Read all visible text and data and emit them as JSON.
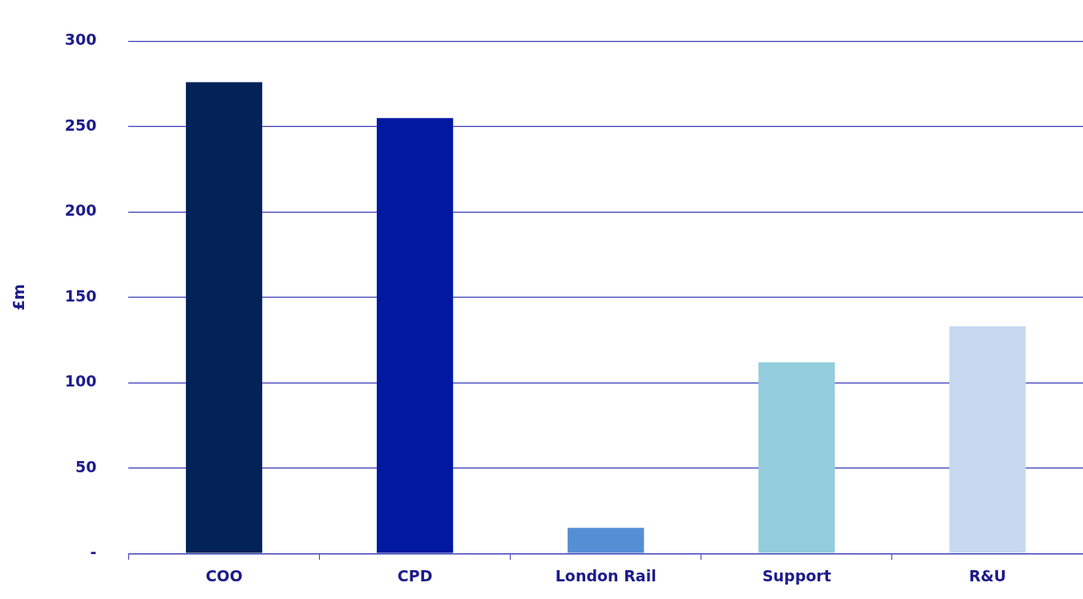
{
  "chart_data": {
    "type": "bar",
    "ylabel": "£m",
    "categories": [
      "COO",
      "CPD",
      "London Rail",
      "Support",
      "R&U"
    ],
    "values": [
      276,
      255,
      15,
      112,
      133
    ],
    "colors": [
      "#022258",
      "#0019a0",
      "#558ed5",
      "#93cddd",
      "#c6d9f1"
    ],
    "ylim": [
      0,
      300
    ],
    "yticks": [
      {
        "value": 0,
        "label": "-"
      },
      50,
      100,
      150,
      200,
      250,
      300
    ],
    "grid": "y",
    "legend": false
  }
}
